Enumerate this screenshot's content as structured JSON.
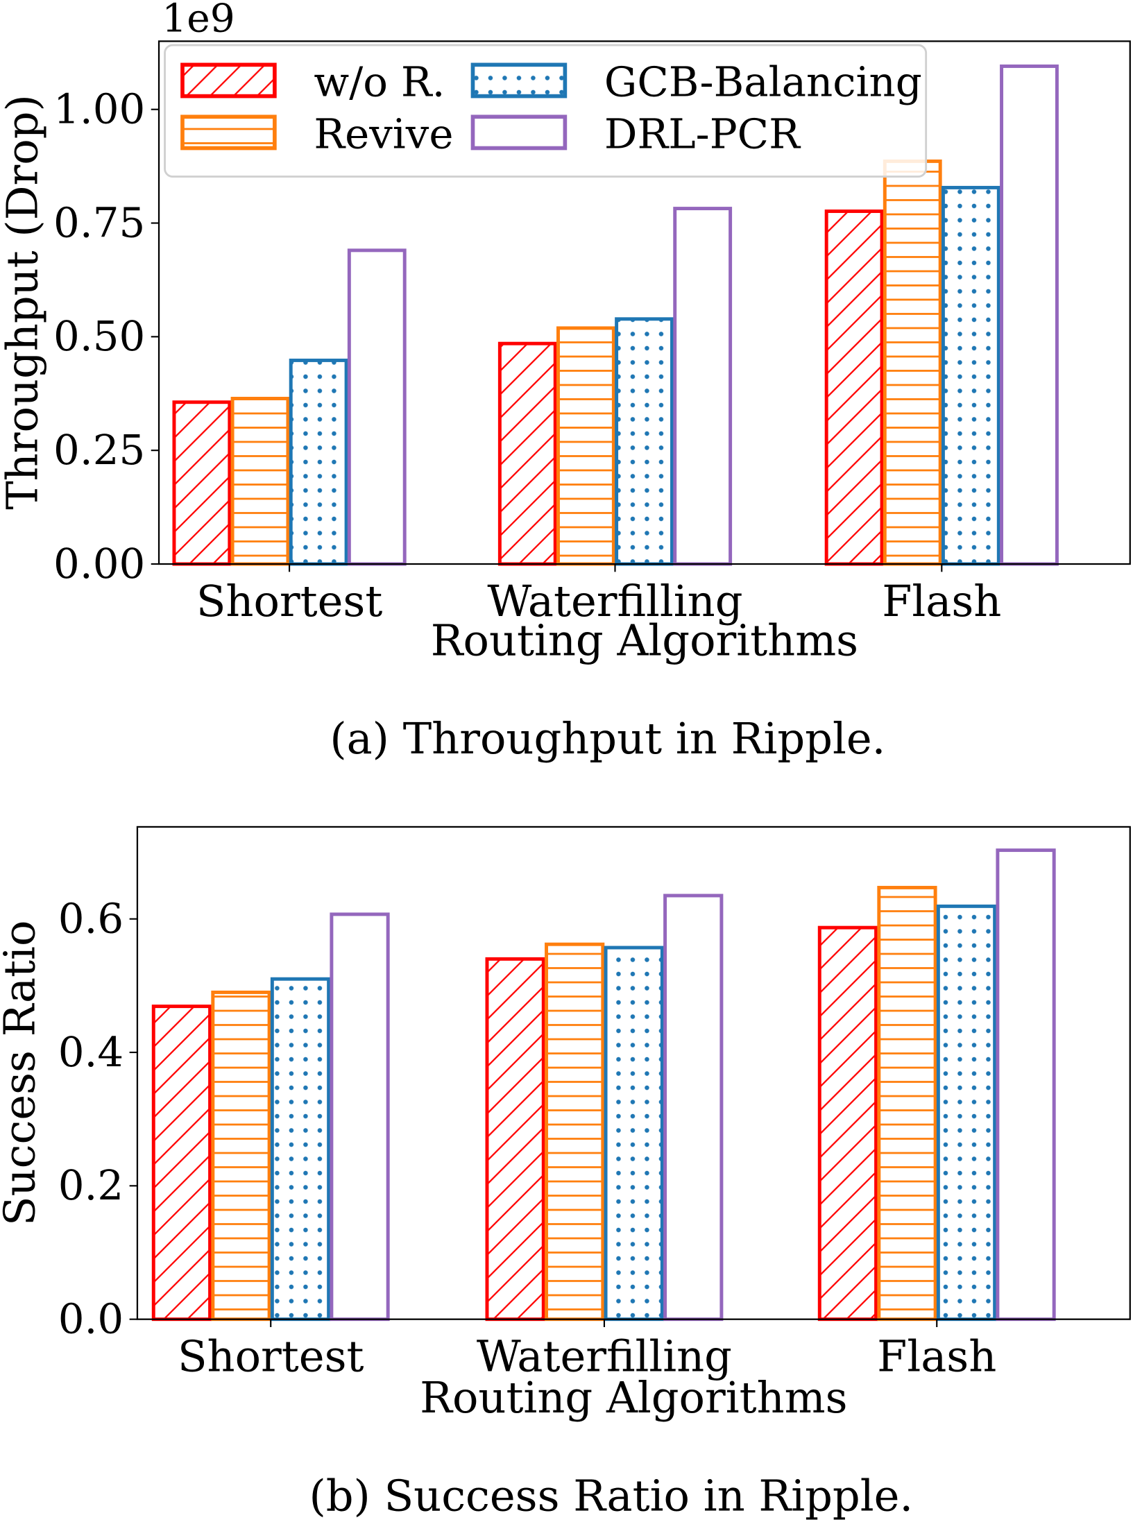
{
  "legend": {
    "entries": [
      "w/o R.",
      "Revive",
      "GCB-Balancing",
      "DRL-PCR"
    ],
    "placement": "upper-left"
  },
  "colors": {
    "w/o R.": "#ff0000",
    "Revive": "#ff7f0e",
    "GCB-Balancing": "#1f77b4",
    "DRL-PCR": "#9467bd"
  },
  "hatches": {
    "w/o R.": "diagonal",
    "Revive": "horizontal",
    "GCB-Balancing": "dots",
    "DRL-PCR": "none"
  },
  "chart_data": [
    {
      "type": "bar",
      "caption": "(a)  Throughput in Ripple.",
      "xlabel": "Routing Algorithms",
      "ylabel": "Throughput (Drop)",
      "offset_label": "1e9",
      "categories": [
        "Shortest",
        "Waterfilling",
        "Flash"
      ],
      "ylim": [
        0,
        1.15
      ],
      "yticks": [
        "0.00",
        "0.25",
        "0.50",
        "0.75",
        "1.00"
      ],
      "grid": false,
      "series": [
        {
          "name": "w/o R.",
          "values": [
            0.356,
            0.485,
            0.776
          ]
        },
        {
          "name": "Revive",
          "values": [
            0.364,
            0.519,
            0.886
          ]
        },
        {
          "name": "GCB-Balancing",
          "values": [
            0.448,
            0.539,
            0.828
          ]
        },
        {
          "name": "DRL-PCR",
          "values": [
            0.69,
            0.782,
            1.095
          ]
        }
      ]
    },
    {
      "type": "bar",
      "caption": "(b)  Success Ratio in Ripple.",
      "xlabel": "Routing Algorithms",
      "ylabel": "Success Ratio",
      "categories": [
        "Shortest",
        "Waterfilling",
        "Flash"
      ],
      "ylim": [
        0,
        0.738
      ],
      "yticks": [
        "0.0",
        "0.2",
        "0.4",
        "0.6"
      ],
      "grid": false,
      "series": [
        {
          "name": "w/o R.",
          "values": [
            0.469,
            0.54,
            0.587
          ]
        },
        {
          "name": "Revive",
          "values": [
            0.49,
            0.562,
            0.647
          ]
        },
        {
          "name": "GCB-Balancing",
          "values": [
            0.51,
            0.557,
            0.619
          ]
        },
        {
          "name": "DRL-PCR",
          "values": [
            0.607,
            0.635,
            0.703
          ]
        }
      ]
    }
  ]
}
